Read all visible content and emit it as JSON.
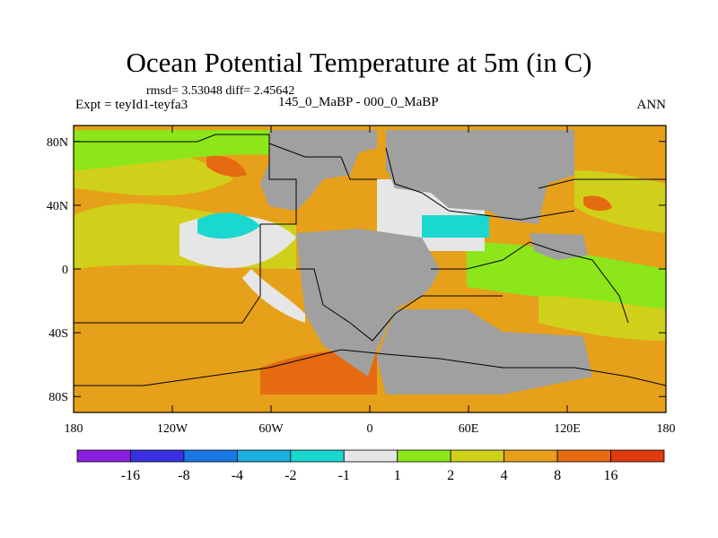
{
  "title": "Ocean Potential Temperature at 5m (in C)",
  "stats": "rmsd= 3.53048 diff= 2.45642",
  "experiment": "Expt = teyId1-teyfa3",
  "period": "145_0_MaBP - 000_0_MaBP",
  "season": "ANN",
  "colors": {
    "land": "#a0a0a0",
    "outline": "#000000"
  },
  "chart_data": {
    "type": "heatmap",
    "title": "Ocean Potential Temperature at 5m (in C)",
    "xlim": [
      -180,
      180
    ],
    "ylim": [
      -90,
      90
    ],
    "x_ticks": [
      {
        "value": -180,
        "label": "180"
      },
      {
        "value": -120,
        "label": "120W"
      },
      {
        "value": -60,
        "label": "60W"
      },
      {
        "value": 0,
        "label": "0"
      },
      {
        "value": 60,
        "label": "60E"
      },
      {
        "value": 120,
        "label": "120E"
      },
      {
        "value": 180,
        "label": "180"
      }
    ],
    "y_ticks": [
      {
        "value": 80,
        "label": "80N"
      },
      {
        "value": 40,
        "label": "40N"
      },
      {
        "value": 0,
        "label": "0"
      },
      {
        "value": -40,
        "label": "40S"
      },
      {
        "value": -80,
        "label": "80S"
      }
    ],
    "colorbar": {
      "levels": [
        "-16",
        "-8",
        "-4",
        "-2",
        "-1",
        "1",
        "2",
        "4",
        "8",
        "16"
      ],
      "colors": [
        "#8a1ee0",
        "#3a2fe0",
        "#1a78e6",
        "#1ab0e0",
        "#1ad8d0",
        "#e6e6e6",
        "#8ce61a",
        "#d0d01a",
        "#e6a01a",
        "#e66a10",
        "#e03a10"
      ]
    }
  }
}
